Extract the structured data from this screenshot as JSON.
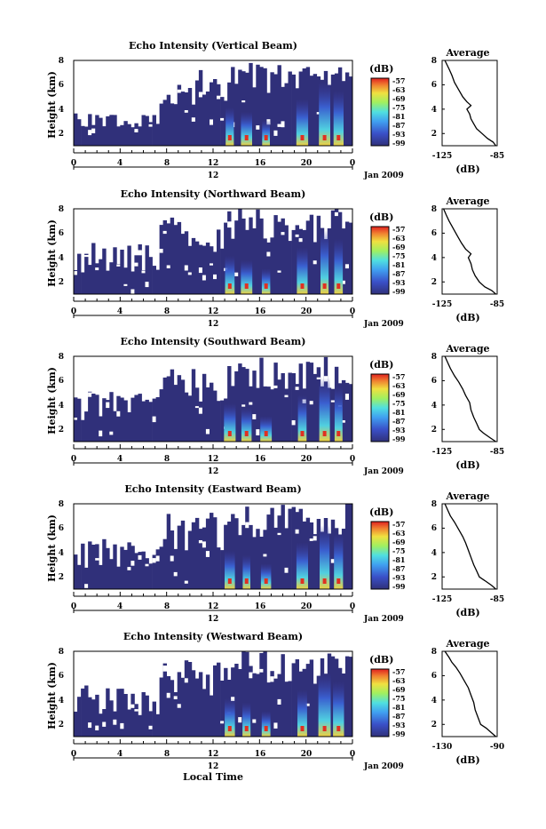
{
  "shared": {
    "ylabel": "Height (km)",
    "ylim": [
      1,
      8
    ],
    "y_ticks": [
      "8",
      "6",
      "4",
      "2"
    ],
    "time_ticks": [
      "0",
      "4",
      "8",
      "12",
      "16",
      "20",
      "0"
    ],
    "date_tick": "12",
    "date_label": "Jan 2009",
    "colorbar_unit": "(dB)",
    "colorbar_ticks": [
      "-57",
      "-63",
      "-69",
      "-75",
      "-81",
      "-87",
      "-93",
      "-99"
    ],
    "colorbar_range": [
      -99,
      -57
    ],
    "average_title": "Average",
    "average_xlabel": "(dB)",
    "xlabel_bottom": "Local Time",
    "colors": {
      "empty": "#ffffff",
      "background": "#30307a",
      "low": "#3a3aa0",
      "mid": "#4ab8f0",
      "high": "#f0d040",
      "peak": "#e03020"
    }
  },
  "chart_data": [
    {
      "type": "heatmap",
      "title": "Echo Intensity (Vertical Beam)",
      "avg_xticks": [
        "-125",
        "-85"
      ],
      "avg_xlim": [
        -125,
        -85
      ],
      "average_profile": [
        [
          -86,
          1
        ],
        [
          -88,
          1.3
        ],
        [
          -92,
          1.6
        ],
        [
          -96,
          2
        ],
        [
          -100,
          2.4
        ],
        [
          -102,
          2.8
        ],
        [
          -104,
          3.2
        ],
        [
          -105,
          3.6
        ],
        [
          -107,
          4
        ],
        [
          -104,
          4.3
        ],
        [
          -107,
          4.6
        ],
        [
          -110,
          5
        ],
        [
          -113,
          5.6
        ],
        [
          -116,
          6.2
        ],
        [
          -118,
          6.8
        ],
        [
          -120,
          7.3
        ],
        [
          -123,
          8
        ]
      ]
    },
    {
      "type": "heatmap",
      "title": "Echo Intensity (Northward Beam)",
      "avg_xticks": [
        "-125",
        "-85"
      ],
      "avg_xlim": [
        -125,
        -85
      ],
      "average_profile": [
        [
          -86,
          1
        ],
        [
          -89,
          1.3
        ],
        [
          -94,
          1.6
        ],
        [
          -98,
          2
        ],
        [
          -101,
          2.5
        ],
        [
          -103,
          3
        ],
        [
          -104,
          3.5
        ],
        [
          -106,
          4
        ],
        [
          -104,
          4.3
        ],
        [
          -108,
          4.7
        ],
        [
          -111,
          5.2
        ],
        [
          -114,
          5.8
        ],
        [
          -117,
          6.4
        ],
        [
          -120,
          7
        ],
        [
          -122,
          7.5
        ],
        [
          -124,
          8
        ]
      ]
    },
    {
      "type": "heatmap",
      "title": "Echo Intensity (Southward Beam)",
      "avg_xticks": [
        "-125",
        "-85"
      ],
      "avg_xlim": [
        -125,
        -85
      ],
      "average_profile": [
        [
          -86,
          1
        ],
        [
          -90,
          1.3
        ],
        [
          -95,
          1.7
        ],
        [
          -98,
          2
        ],
        [
          -100,
          2.5
        ],
        [
          -102,
          3
        ],
        [
          -104,
          3.6
        ],
        [
          -105,
          4.2
        ],
        [
          -108,
          4.8
        ],
        [
          -110,
          5.3
        ],
        [
          -113,
          5.9
        ],
        [
          -116,
          6.4
        ],
        [
          -119,
          7
        ],
        [
          -121,
          7.5
        ],
        [
          -123,
          8
        ]
      ]
    },
    {
      "type": "heatmap",
      "title": "Echo Intensity (Eastward Beam)",
      "avg_xticks": [
        "-125",
        "-85"
      ],
      "avg_xlim": [
        -125,
        -85
      ],
      "average_profile": [
        [
          -86,
          1
        ],
        [
          -89,
          1.3
        ],
        [
          -94,
          1.7
        ],
        [
          -98,
          2
        ],
        [
          -100,
          2.5
        ],
        [
          -102,
          3
        ],
        [
          -104,
          3.6
        ],
        [
          -106,
          4.2
        ],
        [
          -108,
          4.8
        ],
        [
          -110,
          5.3
        ],
        [
          -113,
          5.9
        ],
        [
          -116,
          6.5
        ],
        [
          -119,
          7
        ],
        [
          -121,
          7.5
        ],
        [
          -123,
          8
        ]
      ]
    },
    {
      "type": "heatmap",
      "title": "Echo Intensity (Westward Beam)",
      "avg_xticks": [
        "-130",
        "-90"
      ],
      "avg_xlim": [
        -130,
        -90
      ],
      "average_profile": [
        [
          -91,
          1
        ],
        [
          -94,
          1.3
        ],
        [
          -98,
          1.7
        ],
        [
          -102,
          2
        ],
        [
          -104,
          2.6
        ],
        [
          -106,
          3.2
        ],
        [
          -107,
          3.8
        ],
        [
          -109,
          4.4
        ],
        [
          -111,
          5
        ],
        [
          -114,
          5.6
        ],
        [
          -117,
          6.2
        ],
        [
          -120,
          6.7
        ],
        [
          -123,
          7.1
        ],
        [
          -125,
          7.5
        ],
        [
          -128,
          8
        ]
      ]
    }
  ]
}
